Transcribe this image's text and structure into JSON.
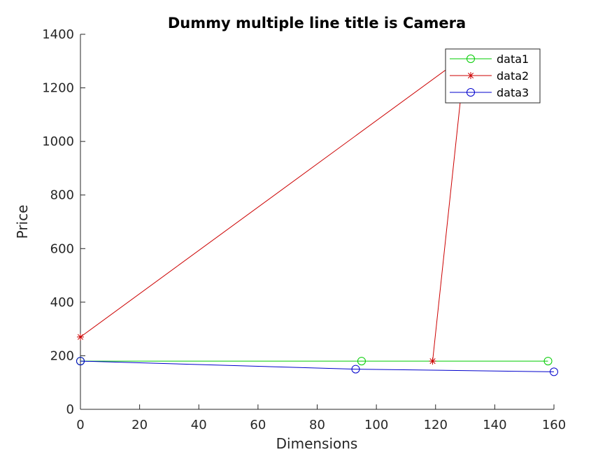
{
  "chart_data": {
    "type": "line",
    "title": "Dummy multiple line title is Camera",
    "xlabel": "Dimensions",
    "ylabel": "Price",
    "xlim": [
      0,
      160
    ],
    "ylim": [
      0,
      1400
    ],
    "xticks": [
      0,
      20,
      40,
      60,
      80,
      100,
      120,
      140,
      160
    ],
    "yticks": [
      0,
      200,
      400,
      600,
      800,
      1000,
      1200,
      1400
    ],
    "grid": false,
    "legend_position": "top-right",
    "series": [
      {
        "name": "data1",
        "color": "#00cc00",
        "marker": "circle",
        "x": [
          0,
          95,
          158
        ],
        "y": [
          180,
          180,
          180
        ]
      },
      {
        "name": "data2",
        "color": "#cc0000",
        "marker": "asterisk",
        "x": [
          0,
          130,
          119
        ],
        "y": [
          270,
          1320,
          180
        ]
      },
      {
        "name": "data3",
        "color": "#0000cc",
        "marker": "circle",
        "x": [
          0,
          93,
          160
        ],
        "y": [
          180,
          150,
          140
        ]
      }
    ]
  }
}
